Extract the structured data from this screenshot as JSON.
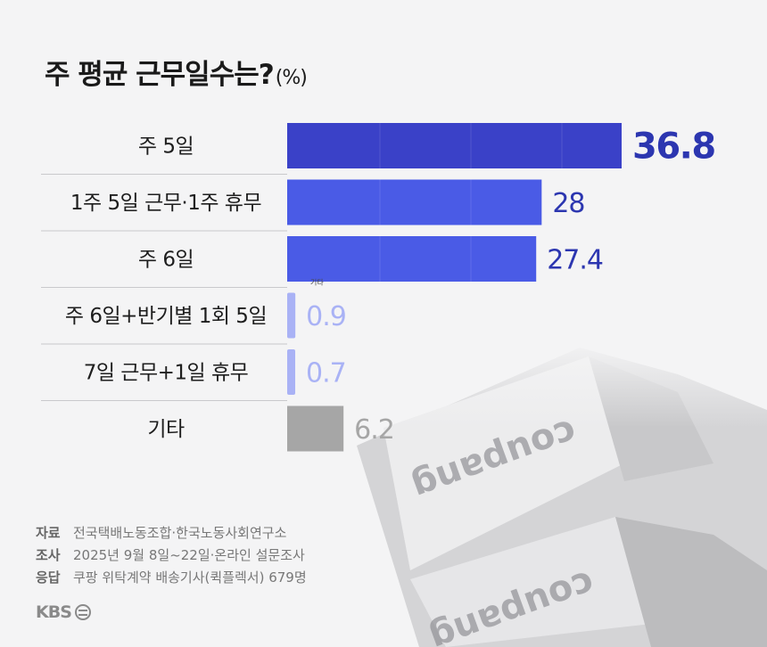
{
  "title": "주 평균 근무일수는?",
  "title_unit": "(%)",
  "chart_data": {
    "type": "bar",
    "orientation": "horizontal",
    "title": "주 평균 근무일수는?",
    "unit": "%",
    "categories": [
      "주 5일",
      "1주 5일 근무·1주 휴무",
      "주 6일",
      "주 6일+반기별 1회 5일",
      "7일 근무+1일 휴무",
      "기타"
    ],
    "values": [
      36.8,
      28,
      27.4,
      0.9,
      0.7,
      6.2
    ],
    "value_labels": [
      "36.8",
      "28",
      "27.4",
      "0.9",
      "0.7",
      "6.2"
    ],
    "bar_colors": [
      "#3a41c8",
      "#4a5be6",
      "#4a5be6",
      "#a9b2f5",
      "#a9b2f5",
      "#a6a6a6"
    ],
    "label_colors": [
      "#2c36b0",
      "#2c36b0",
      "#2c36b0",
      "#a9b2f5",
      "#a9b2f5",
      "#a6a6a6"
    ],
    "annotation": "기타",
    "xlim": [
      0,
      36.8
    ],
    "grid": false
  },
  "source": {
    "items": [
      {
        "key": "자료",
        "text": "전국택배노동조합·한국노동사회연구소"
      },
      {
        "key": "조사",
        "text": "2025년 9월 8일~22일·온라인 설문조사"
      },
      {
        "key": "응답",
        "text": "쿠팡 위탁계약 배송기사(퀵플렉서) 679명"
      }
    ]
  },
  "logo": {
    "text": "KBS"
  },
  "background": {
    "truck_brand": "coupang"
  },
  "icons": {
    "logo_mark": "kbs-circle-icon"
  }
}
